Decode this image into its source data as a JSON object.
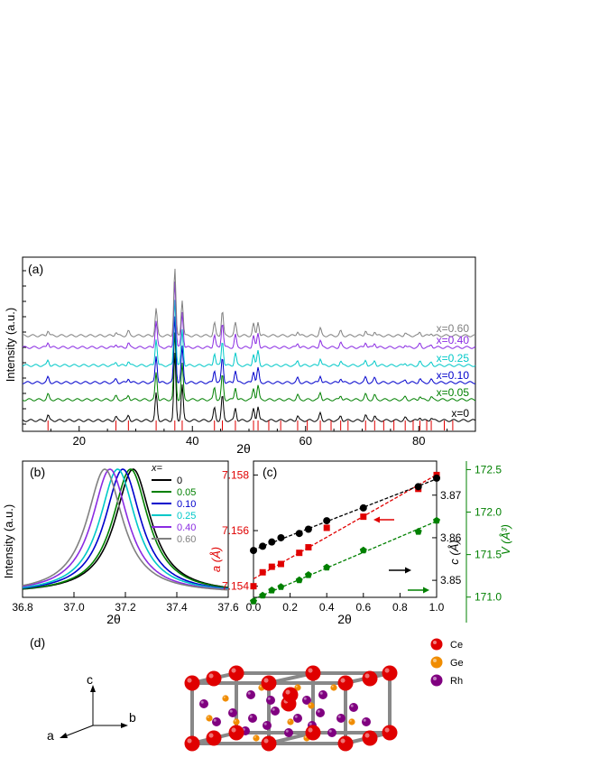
{
  "panel_a": {
    "label": "(a)",
    "xlabel": "2θ",
    "ylabel": "Intensity (a.u.)",
    "ticks": [
      "20",
      "40",
      "60",
      "80"
    ],
    "series": [
      {
        "name": "x=0",
        "color": "#000000"
      },
      {
        "name": "x=0.05",
        "color": "#008000"
      },
      {
        "name": "x=0.10",
        "color": "#0000cc"
      },
      {
        "name": "x=0.25",
        "color": "#00c8c8"
      },
      {
        "name": "x=0.40",
        "color": "#8a2be2"
      },
      {
        "name": "x=0.60",
        "color": "#808080"
      }
    ]
  },
  "panel_b": {
    "label": "(b)",
    "xlabel": "2θ",
    "ylabel": "Intensity (a.u.)",
    "legend_title": "x=",
    "ticks": [
      "36.8",
      "37.0",
      "37.2",
      "37.4",
      "37.6"
    ],
    "series": [
      {
        "name": "0",
        "color": "#000000"
      },
      {
        "name": "0.05",
        "color": "#008000"
      },
      {
        "name": "0.10",
        "color": "#0000cc"
      },
      {
        "name": "0.25",
        "color": "#00c8c8"
      },
      {
        "name": "0.40",
        "color": "#8a2be2"
      },
      {
        "name": "0.60",
        "color": "#808080"
      }
    ]
  },
  "panel_c": {
    "label": "(c)",
    "xlabel": "2θ",
    "left_axis_label": "a (Å)",
    "right1_label": "c (Å)",
    "right2_label": "V (Å³)",
    "xticks": [
      "0.0",
      "0.2",
      "0.4",
      "0.6",
      "0.8",
      "1.0"
    ],
    "a_ticks": [
      "7.154",
      "7.156",
      "7.158"
    ],
    "c_ticks": [
      "3.85",
      "3.86",
      "3.87"
    ],
    "v_ticks": [
      "171.0",
      "171.5",
      "172.0",
      "172.5"
    ]
  },
  "panel_d": {
    "label": "(d)",
    "axes": [
      "a",
      "b",
      "c"
    ],
    "legend": [
      {
        "name": "Ce",
        "color": "#e00000"
      },
      {
        "name": "Ge",
        "color": "#f08c00"
      },
      {
        "name": "Rh",
        "color": "#800080"
      }
    ]
  },
  "chart_data": [
    {
      "type": "line",
      "panel": "a",
      "xlabel": "2θ",
      "ylabel": "Intensity (a.u.)",
      "xlim": [
        10,
        90
      ],
      "series_names": [
        "x=0",
        "x=0.05",
        "x=0.10",
        "x=0.25",
        "x=0.40",
        "x=0.60"
      ],
      "peak_positions_2theta": [
        14.5,
        26.5,
        28.7,
        33.6,
        36.9,
        38.2,
        43.9,
        45.3,
        47.6,
        50.8,
        51.6,
        58.6,
        62.6,
        66.2,
        70.6,
        72.2,
        77.6,
        80.2,
        82.2
      ]
    },
    {
      "type": "line",
      "panel": "b",
      "xlabel": "2θ",
      "ylabel": "Intensity (a.u.)",
      "xlim": [
        36.8,
        37.6
      ],
      "series": [
        {
          "name": "0",
          "peak_center": 37.23
        },
        {
          "name": "0.05",
          "peak_center": 37.22
        },
        {
          "name": "0.10",
          "peak_center": 37.19
        },
        {
          "name": "0.25",
          "peak_center": 37.17
        },
        {
          "name": "0.40",
          "peak_center": 37.14
        },
        {
          "name": "0.60",
          "peak_center": 37.12
        }
      ]
    },
    {
      "type": "scatter",
      "panel": "c",
      "xlabel": "2θ",
      "xlim": [
        0,
        1.0
      ],
      "series": [
        {
          "name": "a (Å)",
          "axis": "left",
          "ylim": [
            7.1536,
            7.1585
          ],
          "x": [
            0,
            0.05,
            0.1,
            0.15,
            0.25,
            0.3,
            0.4,
            0.6,
            0.9,
            1.0
          ],
          "y": [
            7.154,
            7.1545,
            7.1547,
            7.1548,
            7.1552,
            7.1554,
            7.1561,
            7.1565,
            7.1575,
            7.158
          ]
        },
        {
          "name": "c (Å)",
          "axis": "right1",
          "ylim": [
            3.846,
            3.878
          ],
          "x": [
            0,
            0.05,
            0.1,
            0.15,
            0.25,
            0.3,
            0.4,
            0.6,
            0.9,
            1.0
          ],
          "y": [
            3.857,
            3.858,
            3.859,
            3.86,
            3.861,
            3.862,
            3.864,
            3.867,
            3.872,
            3.874
          ]
        },
        {
          "name": "V (Å³)",
          "axis": "right2",
          "ylim": [
            170.7,
            172.6
          ],
          "x": [
            0,
            0.05,
            0.1,
            0.15,
            0.25,
            0.3,
            0.4,
            0.6,
            0.9,
            1.0
          ],
          "y": [
            170.95,
            171.02,
            171.08,
            171.12,
            171.2,
            171.26,
            171.35,
            171.55,
            171.77,
            171.9
          ]
        }
      ]
    }
  ]
}
